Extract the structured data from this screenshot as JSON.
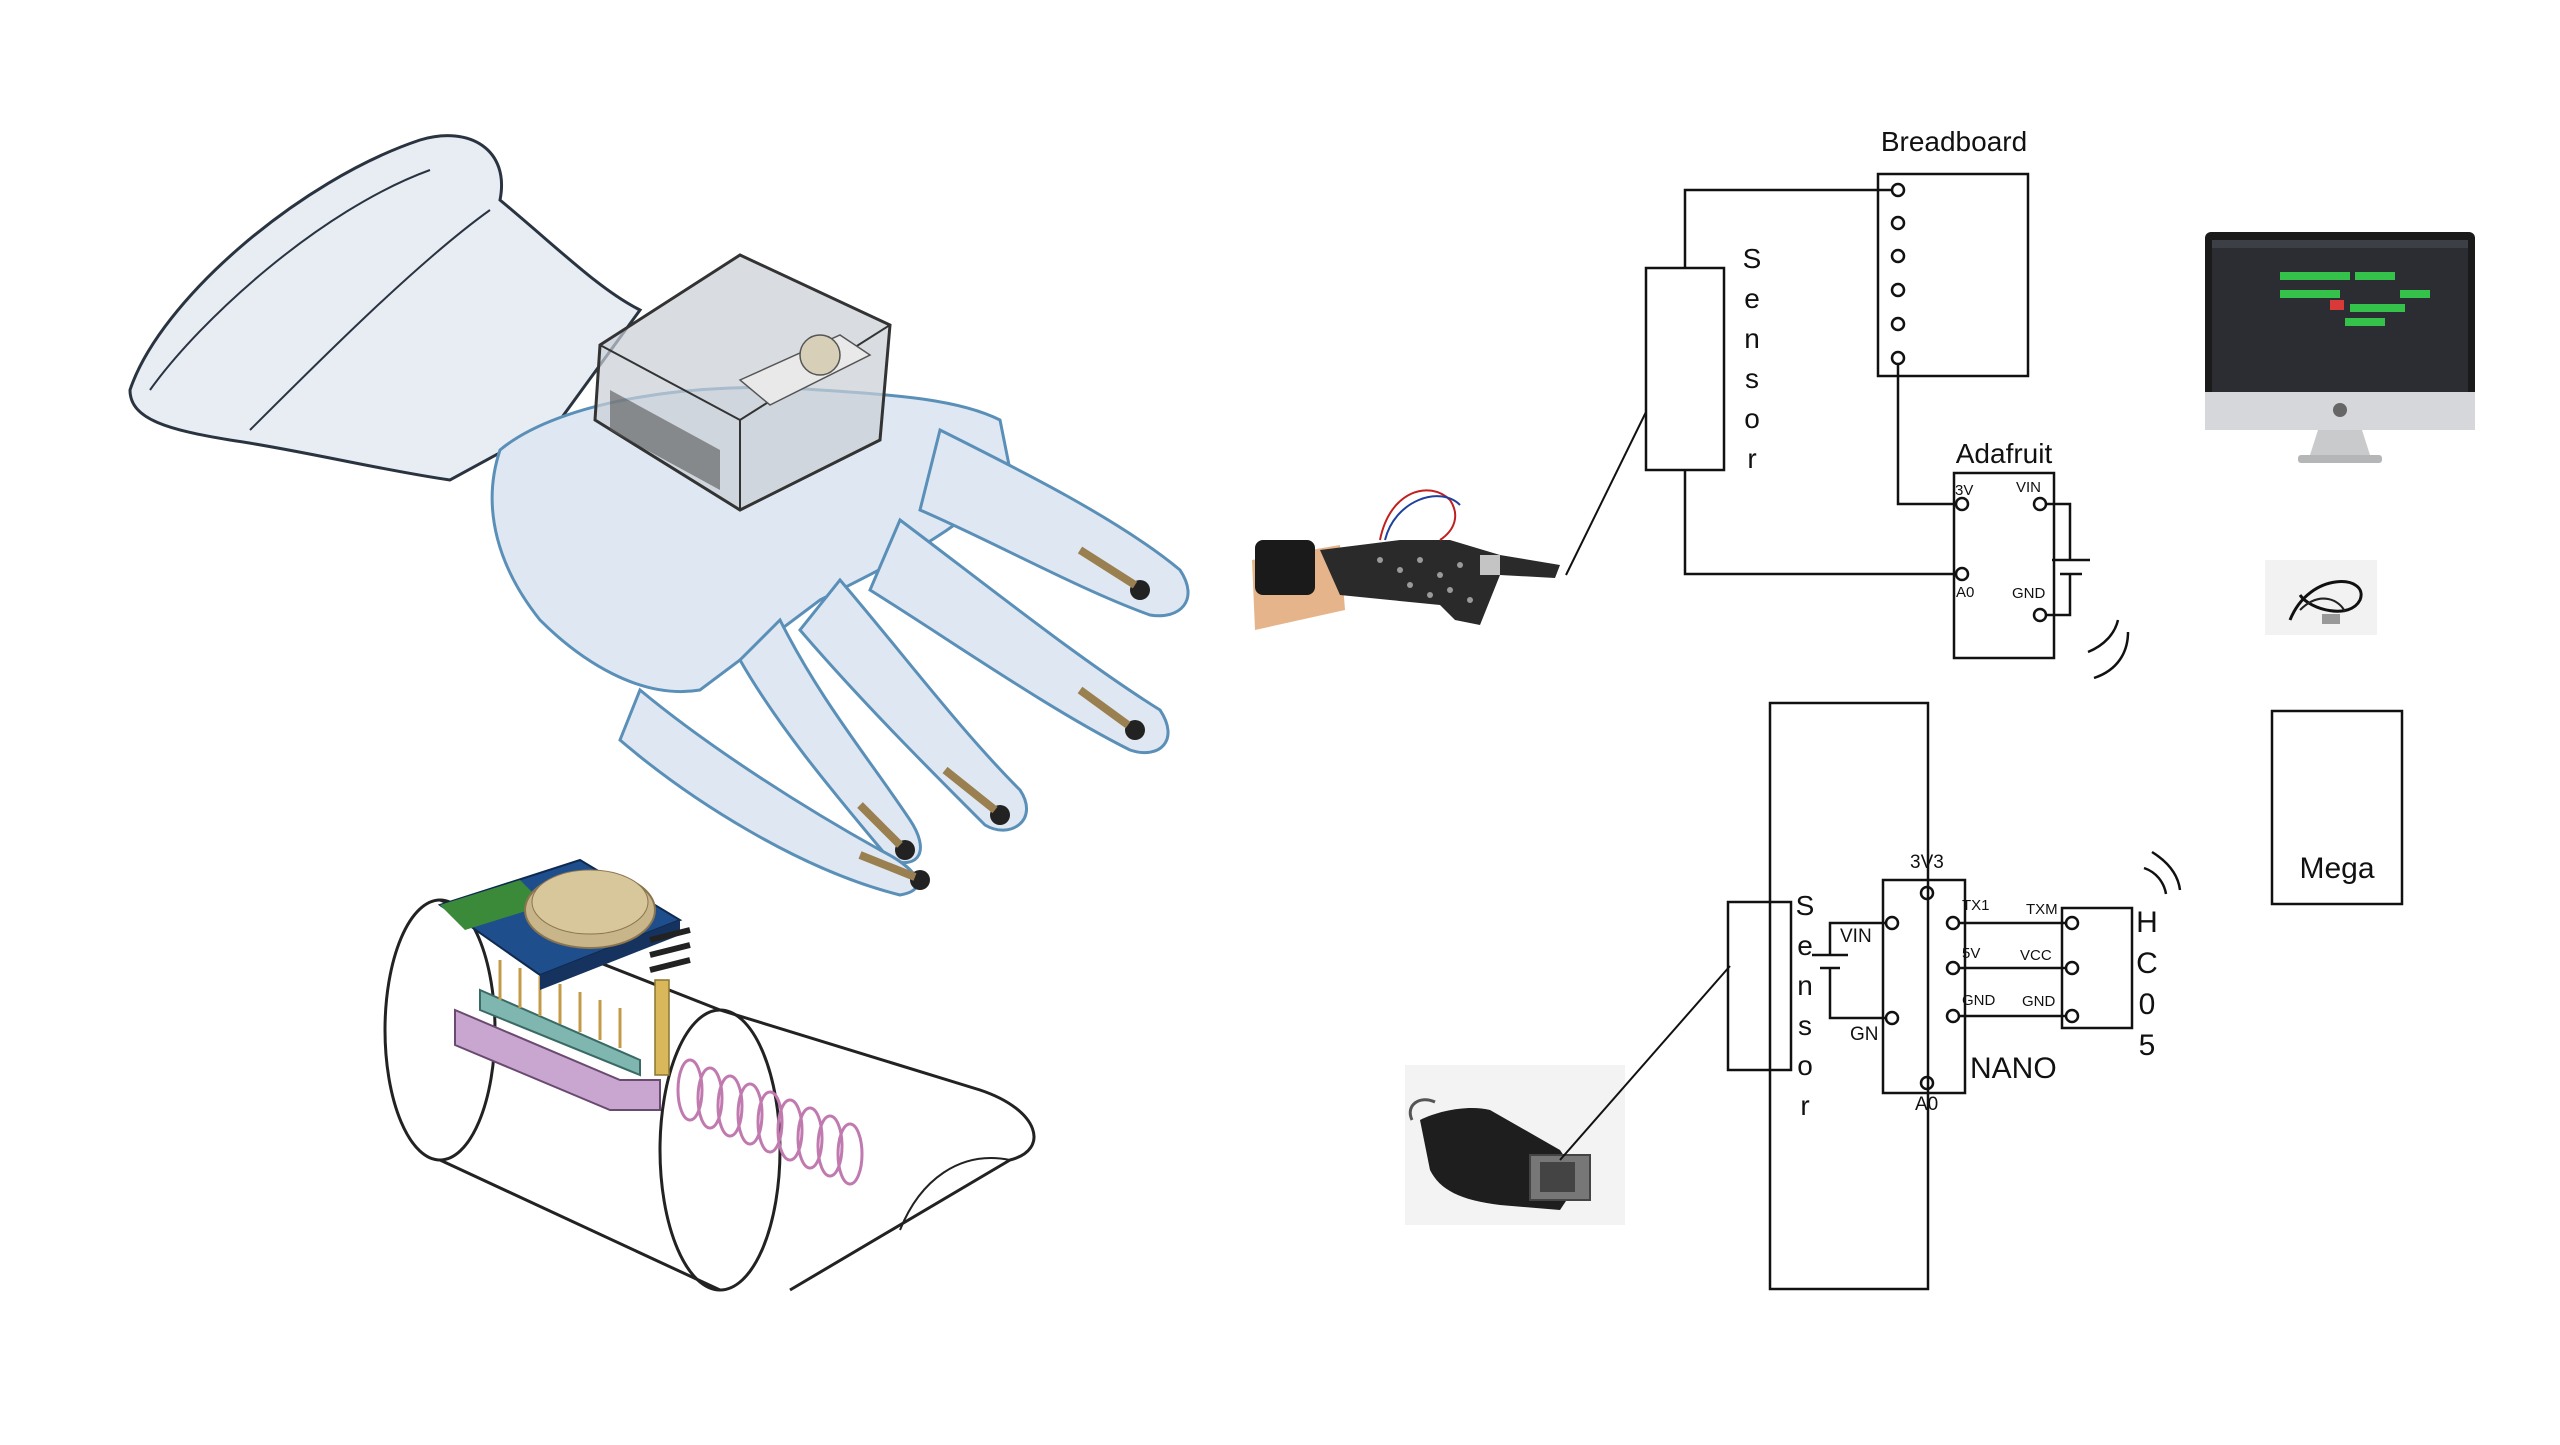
{
  "diagram": {
    "top_circuit": {
      "breadboard_label": "Breadboard",
      "sensor_letters": [
        "S",
        "e",
        "n",
        "s",
        "o",
        "r"
      ],
      "adafruit": {
        "label": "Adafruit",
        "pins": {
          "v3": "3V",
          "vin": "VIN",
          "a0": "A0",
          "gnd": "GND"
        }
      }
    },
    "bottom_circuit": {
      "sensor_letters": [
        "S",
        "e",
        "n",
        "s",
        "o",
        "r"
      ],
      "battery_pins": {
        "vin": "VIN",
        "gnd": "GN"
      },
      "nano": {
        "label": "NANO",
        "pins": {
          "v3v3": "3V3",
          "tx1": "TX1",
          "v5": "5V",
          "gnd": "GND",
          "a0": "A0"
        }
      },
      "hc05": {
        "letters": [
          "H",
          "C",
          "0",
          "5"
        ],
        "pins": {
          "txm": "TXM",
          "vcc": "VCC",
          "gnd": "GND"
        }
      }
    },
    "mega_label": "Mega",
    "colors": {
      "line": "#111111",
      "glove_outline": "#5a8fb8",
      "glove_fill": "#dfe8f2",
      "pcb_blue": "#1f4e8c",
      "pcb_green": "#3a8a3a",
      "header_pink": "#c9a6cf",
      "coil": "#c07ab0",
      "battery": "#c9b58a"
    }
  }
}
